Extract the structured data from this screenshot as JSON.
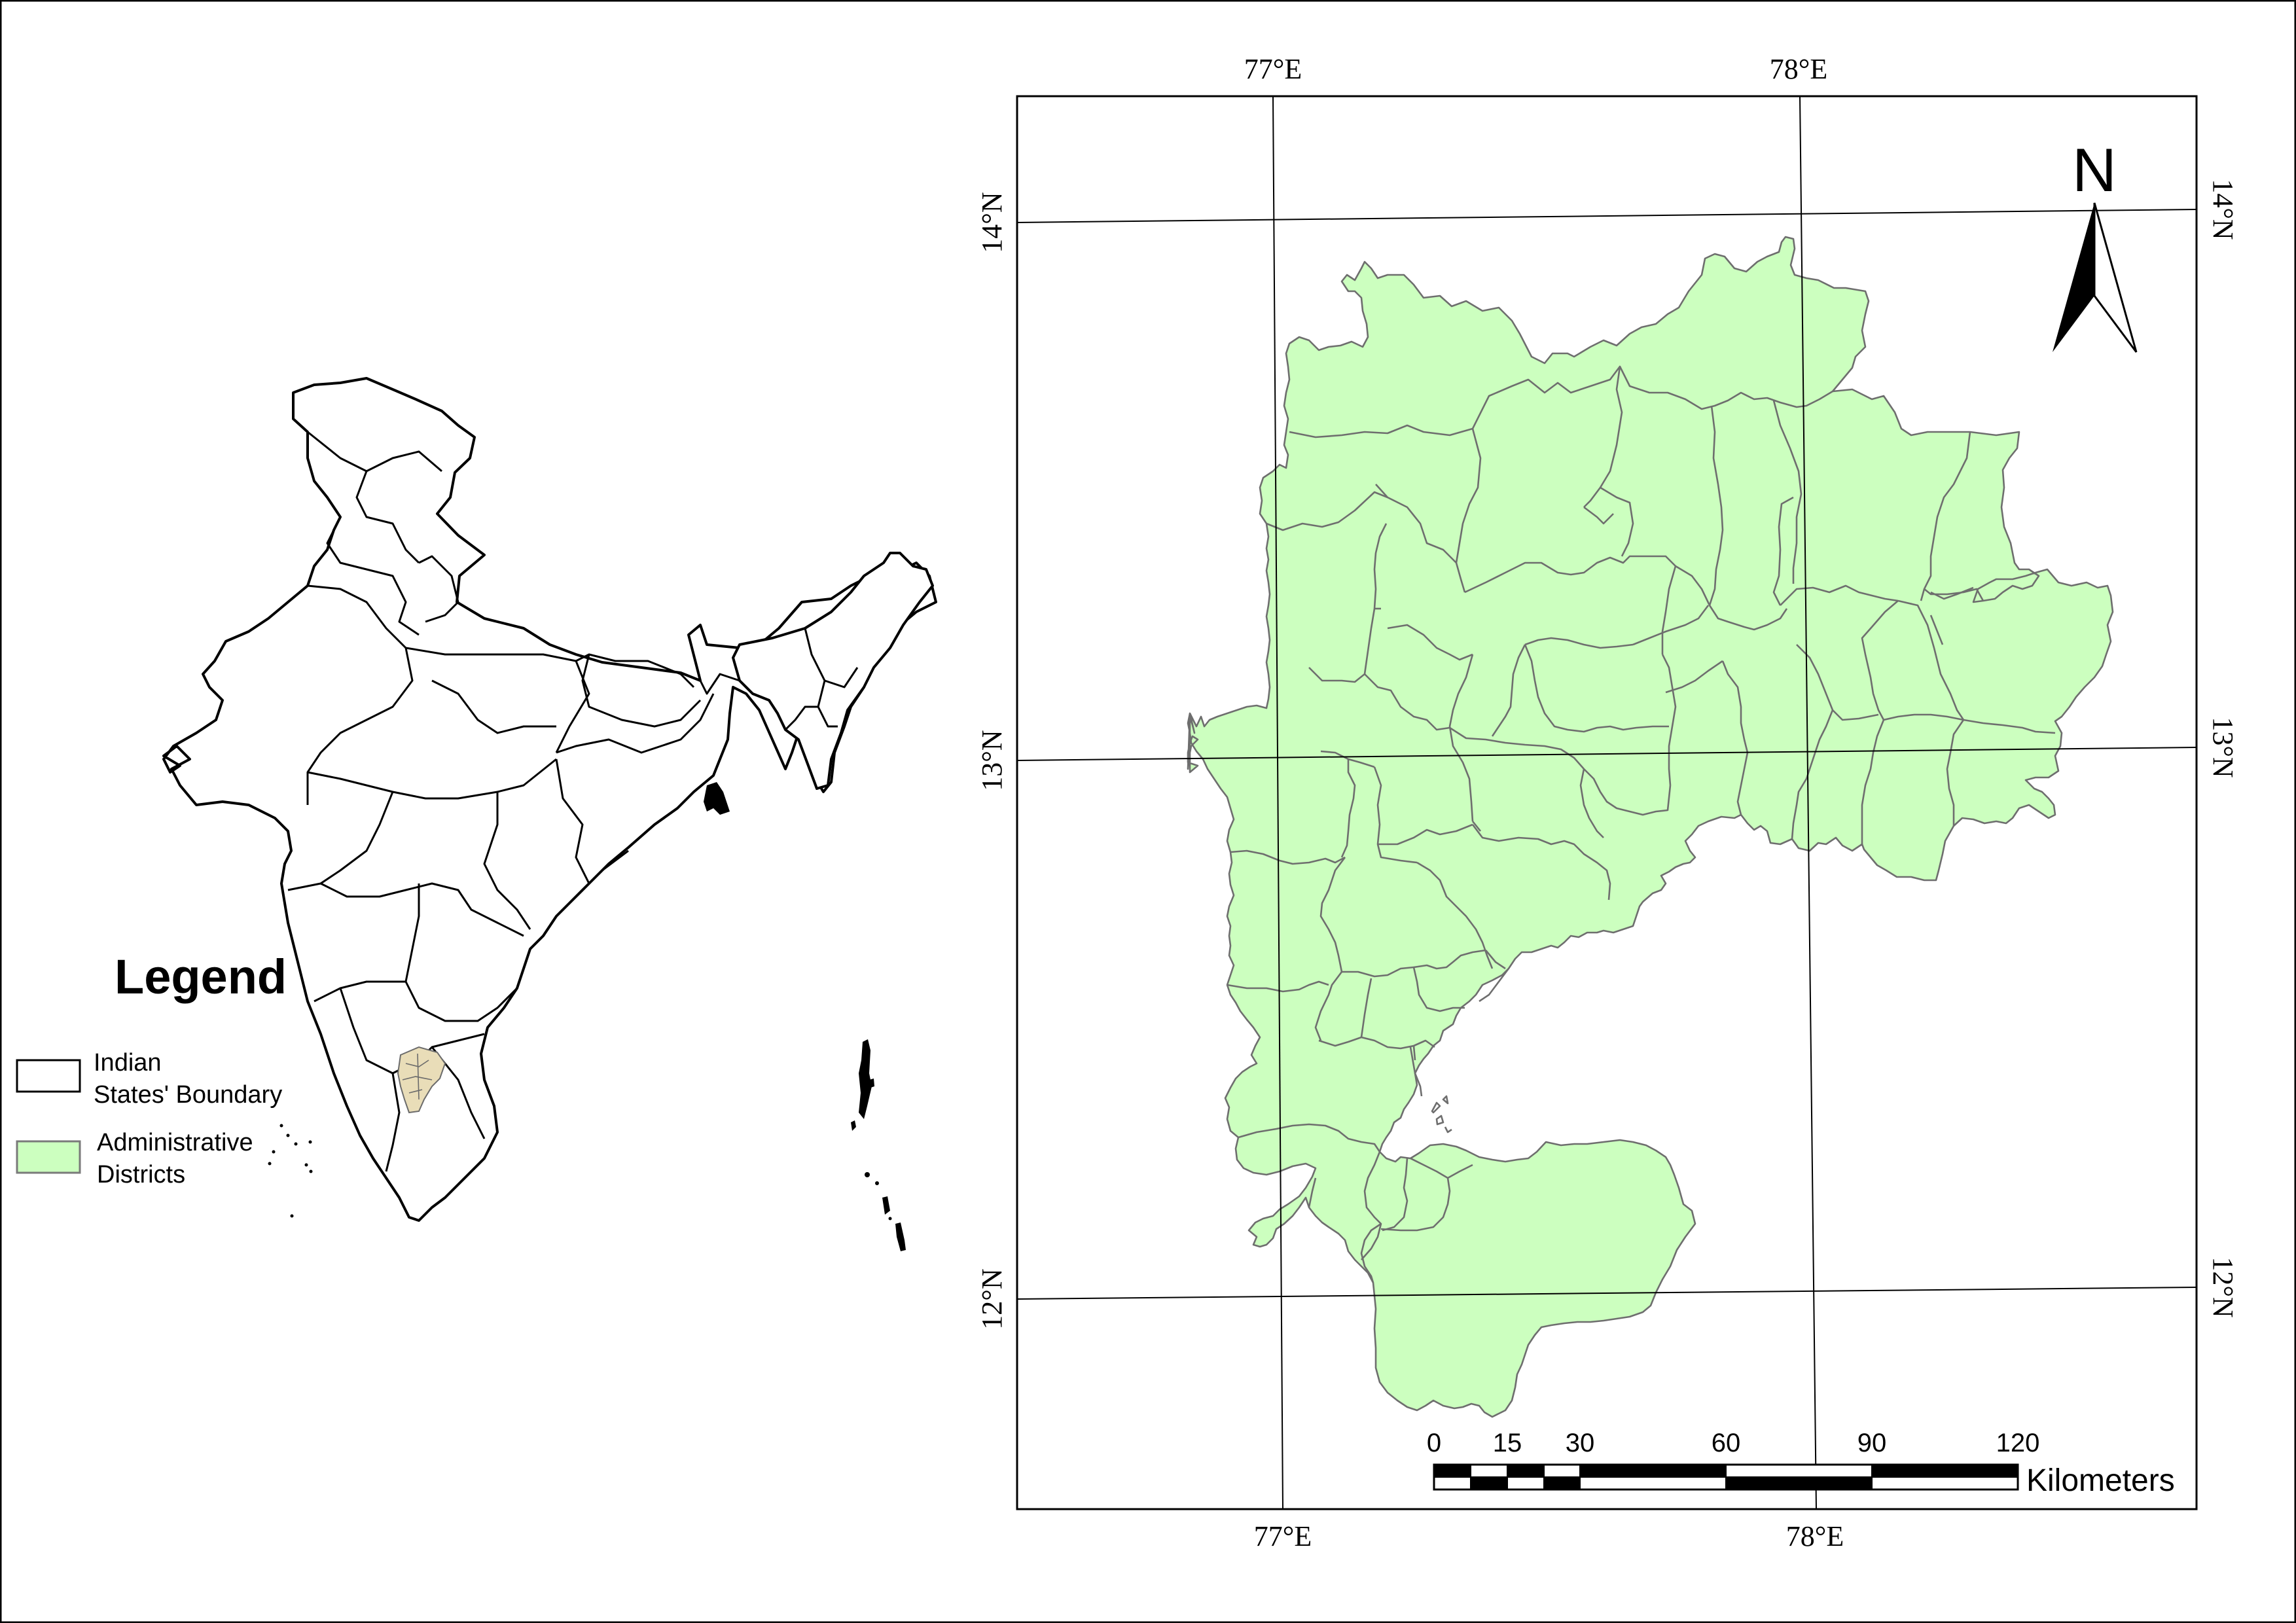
{
  "locator": {
    "legend": {
      "title": "Legend",
      "items": [
        {
          "line1": "Indian",
          "line2": "States' Boundary",
          "swatch_fill": "#ffffff",
          "swatch_stroke": "#000000"
        },
        {
          "line1": "Administrative",
          "line2": "Districts",
          "swatch_fill": "#ccffbf",
          "swatch_stroke": "#7a7a7a"
        }
      ]
    }
  },
  "main_map": {
    "district_fill": "#ccffbf",
    "district_stroke": "#6e6e6e",
    "graticule": {
      "top_labels": [
        "77°E",
        "78°E"
      ],
      "bottom_labels": [
        "77°E",
        "78°E"
      ],
      "left_labels": [
        "14°N",
        "13°N",
        "12°N"
      ],
      "right_labels": [
        "14°N",
        "13°N",
        "12°N"
      ]
    },
    "north_arrow": {
      "label": "N"
    },
    "scale_bar": {
      "ticks": [
        "0",
        "15",
        "30",
        "60",
        "90",
        "120"
      ],
      "unit": "Kilometers"
    }
  }
}
